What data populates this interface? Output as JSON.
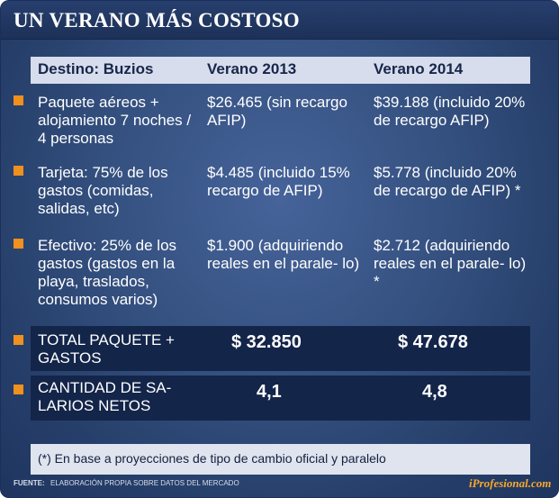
{
  "title": "UN VERANO MÁS COSTOSO",
  "header": {
    "col1": "Destino: Buzios",
    "col2": "Verano 2013",
    "col3": "Verano 2014"
  },
  "rows": [
    {
      "label": "Paquete aéreos + alojamiento 7 noches / 4 personas",
      "v2013": "$26.465 (sin recargo AFIP)",
      "v2014": "$39.188 (incluido 20% de recargo AFIP)"
    },
    {
      "label": "Tarjeta: 75% de los gastos (comidas, salidas, etc)",
      "v2013": "$4.485 (incluido 15% recargo de AFIP)",
      "v2014": "$5.778 (incluido 20% de recargo de AFIP) *"
    },
    {
      "label": "Efectivo: 25% de los gastos (gastos en la playa, traslados, consumos varios)",
      "v2013": "$1.900 (adquiriendo reales en el parale- lo)",
      "v2014": "$2.712 (adquiriendo reales en el parale- lo) *"
    }
  ],
  "totals": [
    {
      "label": "TOTAL PAQUETE + GASTOS",
      "v2013": "$ 32.850",
      "v2014": "$ 47.678"
    },
    {
      "label": "CANTIDAD DE SA- LARIOS NETOS",
      "v2013": "4,1",
      "v2014": "4,8"
    }
  ],
  "footnote": "(*) En base a proyecciones de tipo de cambio oficial y paralelo",
  "source_label": "FUENTE:",
  "source_text": "ELABORACIÓN PROPIA SOBRE DATOS DEL MERCADO",
  "brand": "iProfesional.com",
  "colors": {
    "bullet": "#f0901e",
    "background": "#34507f",
    "brand": "#f7a82e"
  }
}
